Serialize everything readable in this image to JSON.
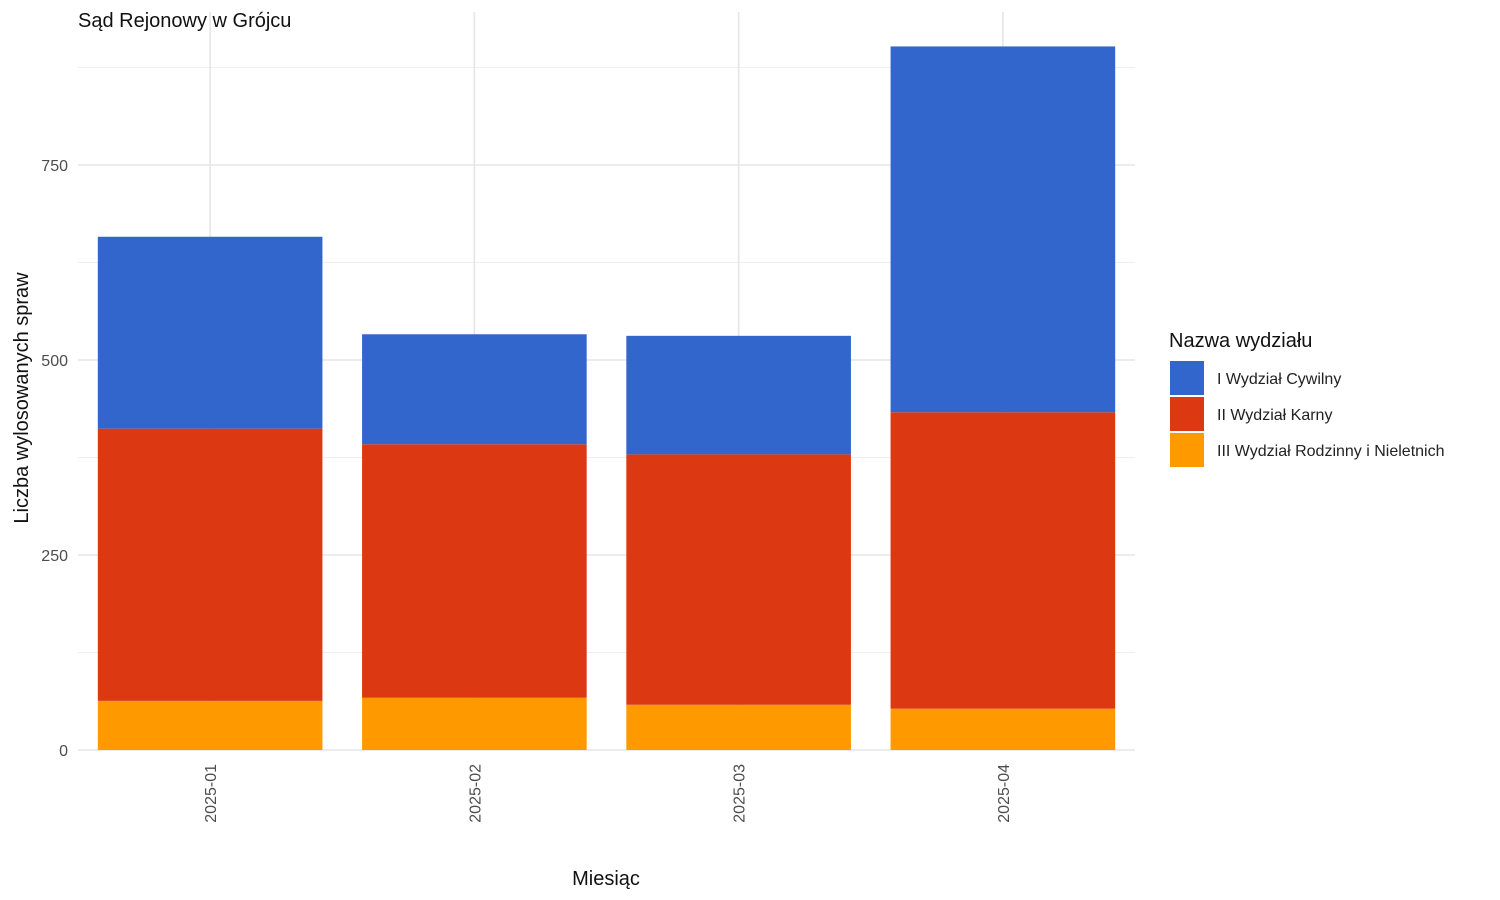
{
  "chart_data": {
    "type": "bar",
    "stacked": true,
    "title": "Sąd Rejonowy w Grójcu",
    "xlabel": "Miesiąc",
    "ylabel": "Liczba wylosowanych spraw",
    "categories": [
      "2025-01",
      "2025-02",
      "2025-03",
      "2025-04"
    ],
    "ylim": [
      0,
      925
    ],
    "yticks": [
      0,
      250,
      500,
      750
    ],
    "grid": true,
    "legend": {
      "title": "Nazwa wydziału",
      "position": "right"
    },
    "series": [
      {
        "name": "III Wydział Rodzinny i Nieletnich",
        "color": "#FF9900",
        "values": [
          63,
          67,
          58,
          53
        ]
      },
      {
        "name": "II Wydział Karny",
        "color": "#DC3912",
        "values": [
          349,
          325,
          321,
          380
        ]
      },
      {
        "name": "I Wydział Cywilny",
        "color": "#3366CC",
        "values": [
          246,
          141,
          152,
          469
        ]
      }
    ],
    "legend_order": [
      "I Wydział Cywilny",
      "II Wydział Karny",
      "III Wydział Rodzinny i Nieletnich"
    ]
  }
}
